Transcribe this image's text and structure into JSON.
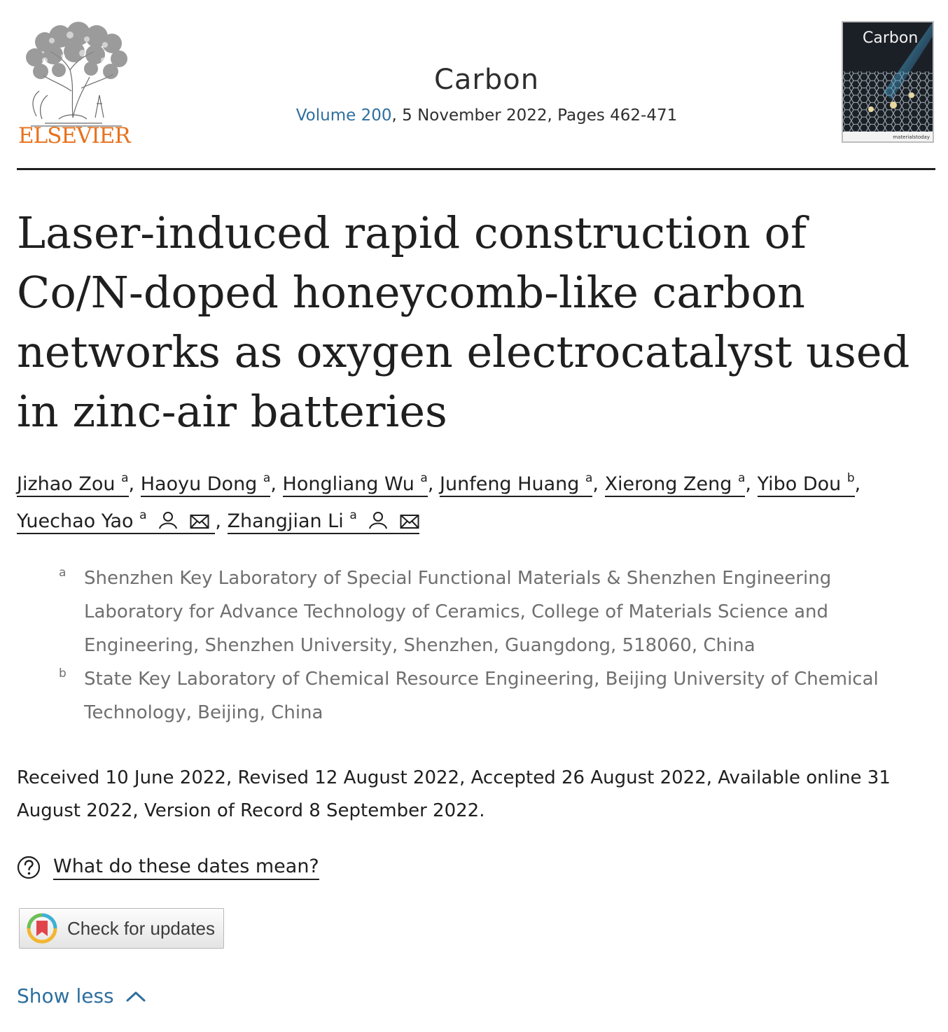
{
  "header": {
    "publisher_logo_text": "ELSEVIER",
    "journal_name": "Carbon",
    "volume_link": "Volume 200",
    "date_pages": ", 5 November 2022, Pages 462-471",
    "cover_title": "Carbon",
    "cover_footer": "materialstoday"
  },
  "article": {
    "title": "Laser-induced rapid construction of Co/N-doped honeycomb-like carbon networks as oxygen electrocatalyst used in zinc-air batteries"
  },
  "authors": [
    {
      "name": "Jizhao Zou",
      "sup": "a"
    },
    {
      "name": "Haoyu Dong",
      "sup": "a"
    },
    {
      "name": "Hongliang Wu",
      "sup": "a"
    },
    {
      "name": "Junfeng Huang",
      "sup": "a"
    },
    {
      "name": "Xierong Zeng",
      "sup": "a"
    },
    {
      "name": "Yibo Dou",
      "sup": "b"
    },
    {
      "name": "Yuechao Yao",
      "sup": "a"
    },
    {
      "name": "Zhangjian Li",
      "sup": "a"
    }
  ],
  "affiliations": [
    {
      "label": "a",
      "text": "Shenzhen Key Laboratory of Special Functional Materials & Shenzhen Engineering Laboratory for Advance Technology of Ceramics, College of Materials Science and Engineering, Shenzhen University, Shenzhen, Guangdong, 518060, China"
    },
    {
      "label": "b",
      "text": "State Key Laboratory of Chemical Resource Engineering, Beijing University of Chemical Technology, Beijing, China"
    }
  ],
  "dates": {
    "text": "Received 10 June 2022, Revised 12 August 2022, Accepted 26 August 2022, Available online 31 August 2022, Version of Record 8 September 2022."
  },
  "dates_help": {
    "label": "What do these dates mean?"
  },
  "check_updates": {
    "label": "Check for updates"
  },
  "toggle": {
    "label": "Show less"
  },
  "colors": {
    "link": "#2e6f9e",
    "elsevier_orange": "#e9711c",
    "text": "#1f1f1f",
    "muted": "#6f6f6f"
  },
  "icons": [
    "elsevier-tree-icon",
    "person-icon",
    "envelope-icon",
    "question-circle-icon",
    "check-for-updates-icon",
    "chevron-up-icon"
  ]
}
